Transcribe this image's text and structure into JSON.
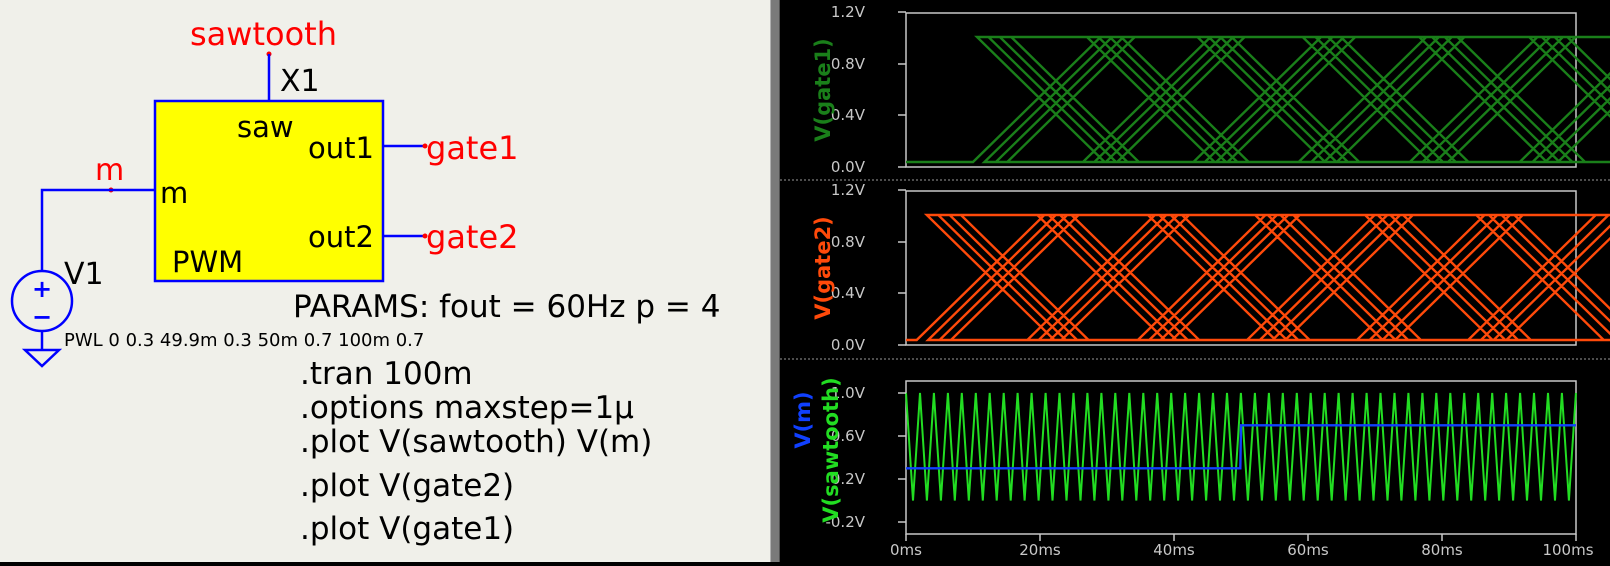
{
  "schematic": {
    "nets": {
      "sawtooth": "sawtooth",
      "m": "m",
      "gate1": "gate1",
      "gate2": "gate2"
    },
    "pwm_block": {
      "instance": "X1",
      "name": "PWM",
      "pins": {
        "saw": "saw",
        "m": "m",
        "out1": "out1",
        "out2": "out2"
      }
    },
    "source": {
      "name": "V1",
      "plus": "+",
      "minus": "−",
      "value": "PWL 0 0.3 49.9m 0.3 50m 0.7 100m 0.7"
    },
    "params": "PARAMS: fout = 60Hz p = 4",
    "directives": [
      ".tran 100m",
      ".options maxstep=1µ",
      ".plot V(sawtooth) V(m)",
      ".plot V(gate2)",
      ".plot V(gate1)"
    ],
    "colors": {
      "wire": "#0000ff",
      "netlabel": "#ff0000",
      "block_fill": "#ffff00",
      "text": "#000000"
    }
  },
  "plots": {
    "x_ticks": [
      "0ms",
      "20ms",
      "40ms",
      "60ms",
      "80ms",
      "100ms"
    ],
    "gate1": {
      "ylabel": "V(gate1)",
      "color": "#1a7f1a",
      "y_ticks": [
        "1.2V",
        "0.8V",
        "0.4V",
        "0.0V"
      ]
    },
    "gate2": {
      "ylabel": "V(gate2)",
      "color": "#ff4a0a",
      "y_ticks": [
        "1.2V",
        "0.8V",
        "0.4V",
        "0.0V"
      ]
    },
    "bottom": {
      "ylabel_top": "V(m)",
      "ylabel_bottom": "V(sawtooth)",
      "color_m": "#1040ff",
      "color_saw": "#22dd22",
      "y_ticks": [
        "1.0V",
        "0.6V",
        "0.2V",
        "-0.2V"
      ]
    }
  },
  "chart_data": [
    {
      "type": "line",
      "ylabel": "V(gate1)",
      "xlim": [
        0,
        100
      ],
      "ylim": [
        0,
        1.2
      ],
      "series": [
        {
          "name": "V(gate1)",
          "pulse_groups_ms": [
            [
              10.0,
              11.7,
              13.4,
              15.1
            ],
            [
              26.4,
              28.1,
              29.8,
              31.5
            ],
            [
              42.9,
              44.6,
              46.3,
              48.0
            ],
            [
              58.6,
              60.5,
              62.4,
              64.3
            ],
            [
              75.2,
              77.1,
              79.0,
              80.9
            ],
            [
              91.6,
              93.5,
              95.4,
              97.3
            ]
          ],
          "pulse_width_ms": [
            0.6,
            0.6,
            0.6,
            0.6,
            1.4,
            1.4
          ],
          "high": 1.0,
          "low": 0.0
        }
      ]
    },
    {
      "type": "line",
      "ylabel": "V(gate2)",
      "xlim": [
        0,
        100
      ],
      "ylim": [
        0,
        1.2
      ],
      "series": [
        {
          "name": "V(gate2)",
          "pulse_groups_ms": [
            [
              1.6,
              3.3,
              5.0,
              6.7
            ],
            [
              18.1,
              19.8,
              21.5,
              23.2
            ],
            [
              34.6,
              36.3,
              38.0,
              39.7
            ],
            [
              50.9,
              52.8,
              54.7,
              56.6
            ],
            [
              67.3,
              69.2,
              71.1,
              73.0
            ],
            [
              83.9,
              85.8,
              87.7,
              89.6
            ]
          ],
          "pulse_width_ms": [
            1.5,
            1.5,
            1.5,
            1.2,
            1.2,
            1.2
          ],
          "high": 1.0,
          "low": 0.0
        }
      ]
    },
    {
      "type": "line",
      "xlim": [
        0,
        100
      ],
      "ylim": [
        -0.2,
        1.0
      ],
      "series": [
        {
          "name": "V(m)",
          "x": [
            0,
            49.9,
            50,
            100
          ],
          "y": [
            0.3,
            0.3,
            0.7,
            0.7
          ]
        },
        {
          "name": "V(sawtooth)",
          "period_ms": 2.083,
          "min": 0.0,
          "max": 1.0
        }
      ]
    }
  ]
}
